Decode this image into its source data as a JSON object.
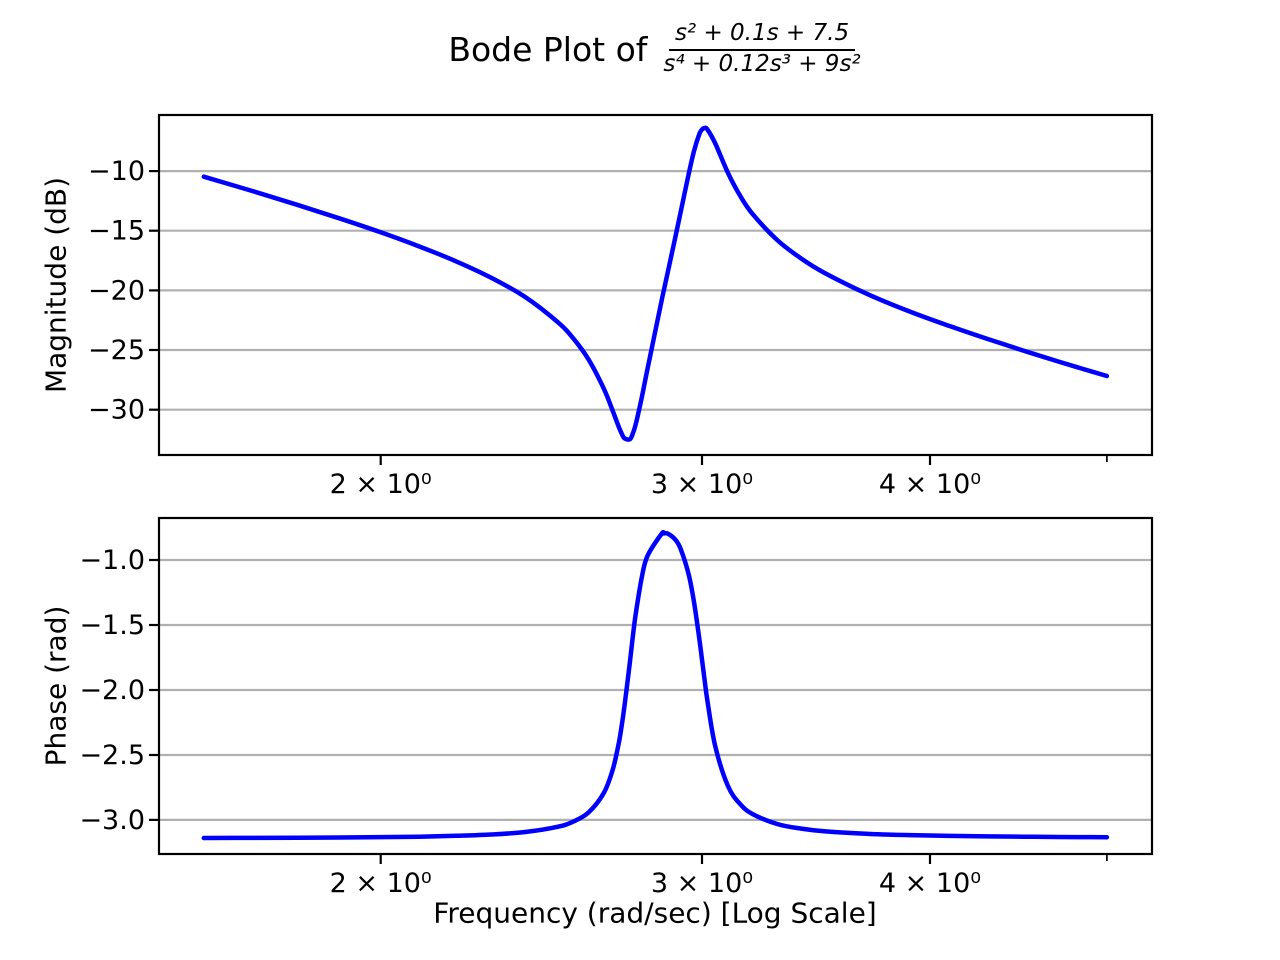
{
  "figure": {
    "title": {
      "prefix": "Bode Plot of",
      "numerator": "s² + 0.1s + 7.5",
      "denominator": "s⁴ + 0.12s³ + 9s²"
    }
  },
  "colors": {
    "curve": "#0000ff",
    "grid": "#b0b0b0",
    "spine": "#000000",
    "text": "#000000",
    "background": "#ffffff"
  },
  "chart_data": [
    {
      "type": "line",
      "name": "magnitude-response",
      "title": "Bode Plot of (s² + 0.1s + 7.5) / (s⁴ + 0.12s³ + 9s²)",
      "xlabel": "",
      "ylabel": "Magnitude (dB)",
      "xscale": "log",
      "xlim": [
        1.512,
        5.293
      ],
      "ylim": [
        -33.8,
        -5.3
      ],
      "grid": "horizontal",
      "legend": "none",
      "line_color": "#0000ff",
      "line_width": 4.5,
      "x_major_ticks": [
        {
          "value": 2,
          "label": "2 × 10⁰"
        },
        {
          "value": 3,
          "label": "3 × 10⁰"
        },
        {
          "value": 4,
          "label": "4 × 10⁰"
        }
      ],
      "x_minor_ticks": [
        5
      ],
      "y_ticks": [
        {
          "value": -10,
          "label": "−10"
        },
        {
          "value": -15,
          "label": "−15"
        },
        {
          "value": -20,
          "label": "−20"
        },
        {
          "value": -25,
          "label": "−25"
        },
        {
          "value": -30,
          "label": "−30"
        }
      ],
      "x": [
        1.6,
        1.7,
        1.8,
        1.9,
        2.0,
        2.1,
        2.2,
        2.3,
        2.4,
        2.5,
        2.55,
        2.6,
        2.65,
        2.68,
        2.7,
        2.71,
        2.72,
        2.739,
        2.75,
        2.76,
        2.78,
        2.8,
        2.85,
        2.86,
        2.874,
        2.9,
        2.92,
        2.95,
        2.97,
        2.99,
        3.0,
        3.01,
        3.02,
        3.05,
        3.1,
        3.15,
        3.2,
        3.3,
        3.4,
        3.5,
        3.7,
        3.9,
        4.1,
        4.3,
        4.5,
        4.7,
        4.85,
        5.0
      ],
      "y": [
        -10.47,
        -11.66,
        -12.83,
        -13.98,
        -15.13,
        -16.32,
        -17.57,
        -18.95,
        -20.56,
        -22.65,
        -24.02,
        -25.8,
        -28.22,
        -30.08,
        -31.39,
        -31.96,
        -32.39,
        -32.48,
        -31.94,
        -31.15,
        -29.02,
        -26.65,
        -20.96,
        -19.88,
        -18.38,
        -15.61,
        -13.46,
        -10.24,
        -8.3,
        -6.89,
        -6.52,
        -6.39,
        -6.5,
        -7.66,
        -10.16,
        -12.15,
        -13.66,
        -15.81,
        -17.33,
        -18.52,
        -20.34,
        -21.78,
        -22.99,
        -24.07,
        -25.05,
        -25.95,
        -26.58,
        -27.18
      ]
    },
    {
      "type": "line",
      "name": "phase-response",
      "title": "",
      "xlabel": "Frequency (rad/sec) [Log Scale]",
      "ylabel": "Phase (rad)",
      "xscale": "log",
      "xlim": [
        1.512,
        5.293
      ],
      "ylim": [
        -3.262,
        -0.677
      ],
      "grid": "horizontal",
      "legend": "none",
      "line_color": "#0000ff",
      "line_width": 4.5,
      "x_major_ticks": [
        {
          "value": 2,
          "label": "2 × 10⁰"
        },
        {
          "value": 3,
          "label": "3 × 10⁰"
        },
        {
          "value": 4,
          "label": "4 × 10⁰"
        }
      ],
      "x_minor_ticks": [
        5
      ],
      "y_ticks": [
        {
          "value": -1.0,
          "label": "−1.0"
        },
        {
          "value": -1.5,
          "label": "−1.5"
        },
        {
          "value": -2.0,
          "label": "−2.0"
        },
        {
          "value": -2.5,
          "label": "−2.5"
        },
        {
          "value": -3.0,
          "label": "−3.0"
        }
      ],
      "x": [
        1.6,
        1.7,
        1.8,
        1.9,
        2.0,
        2.1,
        2.2,
        2.3,
        2.4,
        2.5,
        2.55,
        2.6,
        2.65,
        2.68,
        2.7,
        2.71,
        2.72,
        2.739,
        2.75,
        2.76,
        2.78,
        2.8,
        2.85,
        2.86,
        2.874,
        2.9,
        2.92,
        2.95,
        2.97,
        2.99,
        3.0,
        3.01,
        3.02,
        3.05,
        3.1,
        3.15,
        3.2,
        3.3,
        3.4,
        3.5,
        3.7,
        3.9,
        4.1,
        4.3,
        4.5,
        4.7,
        4.85,
        5.0
      ],
      "y": [
        -3.139,
        -3.138,
        -3.137,
        -3.135,
        -3.132,
        -3.129,
        -3.122,
        -3.112,
        -3.093,
        -3.053,
        -3.013,
        -2.942,
        -2.794,
        -2.616,
        -2.419,
        -2.287,
        -2.13,
        -1.787,
        -1.573,
        -1.404,
        -1.139,
        -0.971,
        -0.801,
        -0.795,
        -0.798,
        -0.842,
        -0.914,
        -1.112,
        -1.326,
        -1.61,
        -1.768,
        -1.926,
        -2.077,
        -2.429,
        -2.74,
        -2.882,
        -2.957,
        -3.032,
        -3.067,
        -3.087,
        -3.107,
        -3.117,
        -3.123,
        -3.126,
        -3.129,
        -3.131,
        -3.132,
        -3.133
      ]
    }
  ]
}
